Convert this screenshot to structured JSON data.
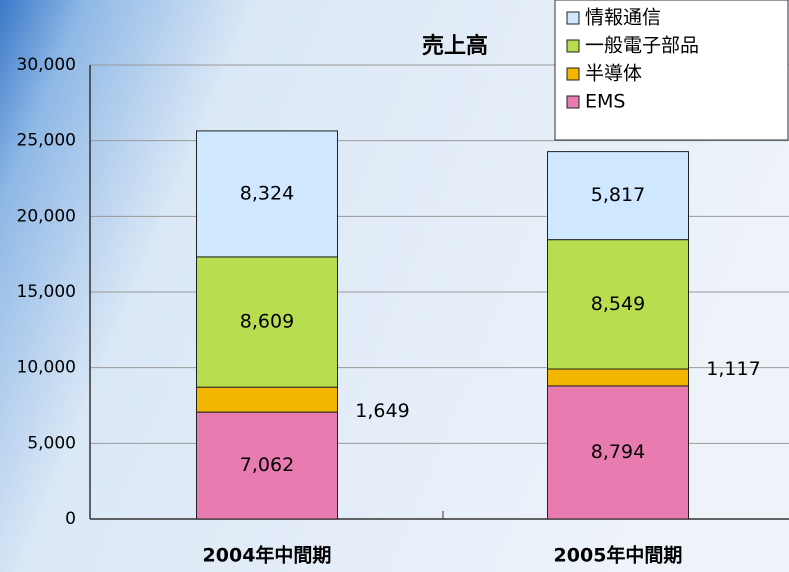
{
  "chart_data": {
    "type": "stacked_bar",
    "title": "売上高",
    "categories": [
      "2004年中間期",
      "2005年中間期"
    ],
    "series": [
      {
        "name": "EMS",
        "color": "#e87bb0",
        "values": [
          7062,
          8794
        ],
        "value_labels": [
          "7,062",
          "8,794"
        ]
      },
      {
        "name": "半導体",
        "color": "#f2b600",
        "values": [
          1649,
          1117
        ],
        "value_labels": [
          "1,649",
          "1,117"
        ]
      },
      {
        "name": "一般電子部品",
        "color": "#b8dd4e",
        "values": [
          8609,
          8549
        ],
        "value_labels": [
          "8,609",
          "8,549"
        ]
      },
      {
        "name": "情報通信",
        "color": "#cfe7ff",
        "values": [
          8324,
          5817
        ],
        "value_labels": [
          "8,324",
          "5,817"
        ]
      }
    ],
    "ylim": [
      0,
      30000
    ],
    "yticks": [
      0,
      {
        "value": 5000,
        "label": "5,000"
      },
      {
        "value": 10000,
        "label": "10,000"
      },
      {
        "value": 15000,
        "label": "15,000"
      },
      {
        "value": 20000,
        "label": "20,000"
      },
      {
        "value": 25000,
        "label": "25,000"
      },
      {
        "value": 30000,
        "label": "30,000"
      }
    ],
    "grid": true,
    "legend": "top-right"
  }
}
